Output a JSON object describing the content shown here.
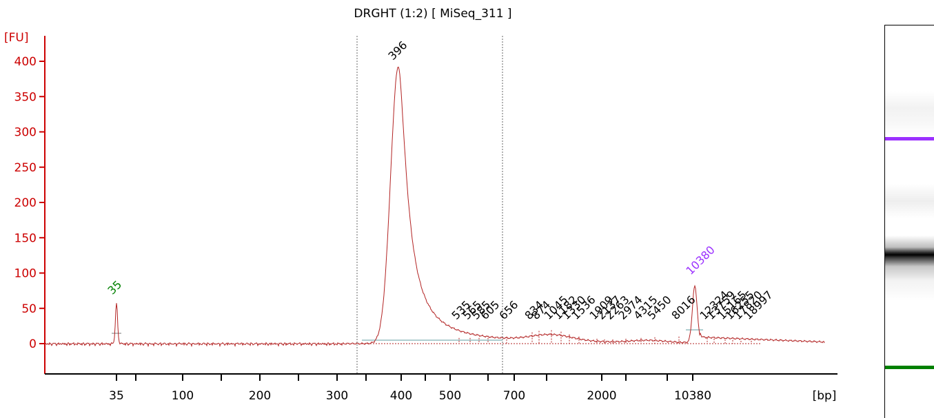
{
  "title": "DRGHT (1:2)  [ MiSeq_311 ]",
  "colors": {
    "trace": "#b22222",
    "axis": "#cc0000",
    "lower_marker": "#008000",
    "upper_marker": "#9b30ff",
    "baseline": "#5f9ea0"
  },
  "chart_data": {
    "type": "line",
    "title": "DRGHT (1:2)  [ MiSeq_311 ]",
    "ylabel": "[FU]",
    "xlabel": "[bp]",
    "ylim": [
      -40,
      420
    ],
    "y_ticks": [
      0,
      50,
      100,
      150,
      200,
      250,
      300,
      350,
      400
    ],
    "x_tick_labels": [
      "35",
      "100",
      "200",
      "300",
      "400",
      "500",
      "700",
      "2000",
      "10380"
    ],
    "grid": false,
    "peaks": [
      {
        "size": "35",
        "fu": 57,
        "role": "lower_marker"
      },
      {
        "size": "396",
        "fu": 393,
        "role": "main"
      },
      {
        "size": "535",
        "fu": 8
      },
      {
        "size": "565",
        "fu": 8
      },
      {
        "size": "585",
        "fu": 8
      },
      {
        "size": "605",
        "fu": 8
      },
      {
        "size": "656",
        "fu": 10
      },
      {
        "size": "834",
        "fu": 16
      },
      {
        "size": "874",
        "fu": 18
      },
      {
        "size": "1045",
        "fu": 19
      },
      {
        "size": "1182",
        "fu": 17
      },
      {
        "size": "1330",
        "fu": 13
      },
      {
        "size": "1536",
        "fu": 10
      },
      {
        "size": "1909",
        "fu": 7
      },
      {
        "size": "2137",
        "fu": 6
      },
      {
        "size": "2263",
        "fu": 6
      },
      {
        "size": "2974",
        "fu": 7
      },
      {
        "size": "4315",
        "fu": 8
      },
      {
        "size": "5450",
        "fu": 9
      },
      {
        "size": "8016",
        "fu": 10
      },
      {
        "size": "10380",
        "fu": 87,
        "role": "upper_marker"
      },
      {
        "size": "12324",
        "fu": 8
      },
      {
        "size": "13759",
        "fu": 7
      },
      {
        "size": "15165",
        "fu": 6
      },
      {
        "size": "16255",
        "fu": 5
      },
      {
        "size": "17820",
        "fu": 4
      },
      {
        "size": "18997",
        "fu": 4
      }
    ]
  }
}
